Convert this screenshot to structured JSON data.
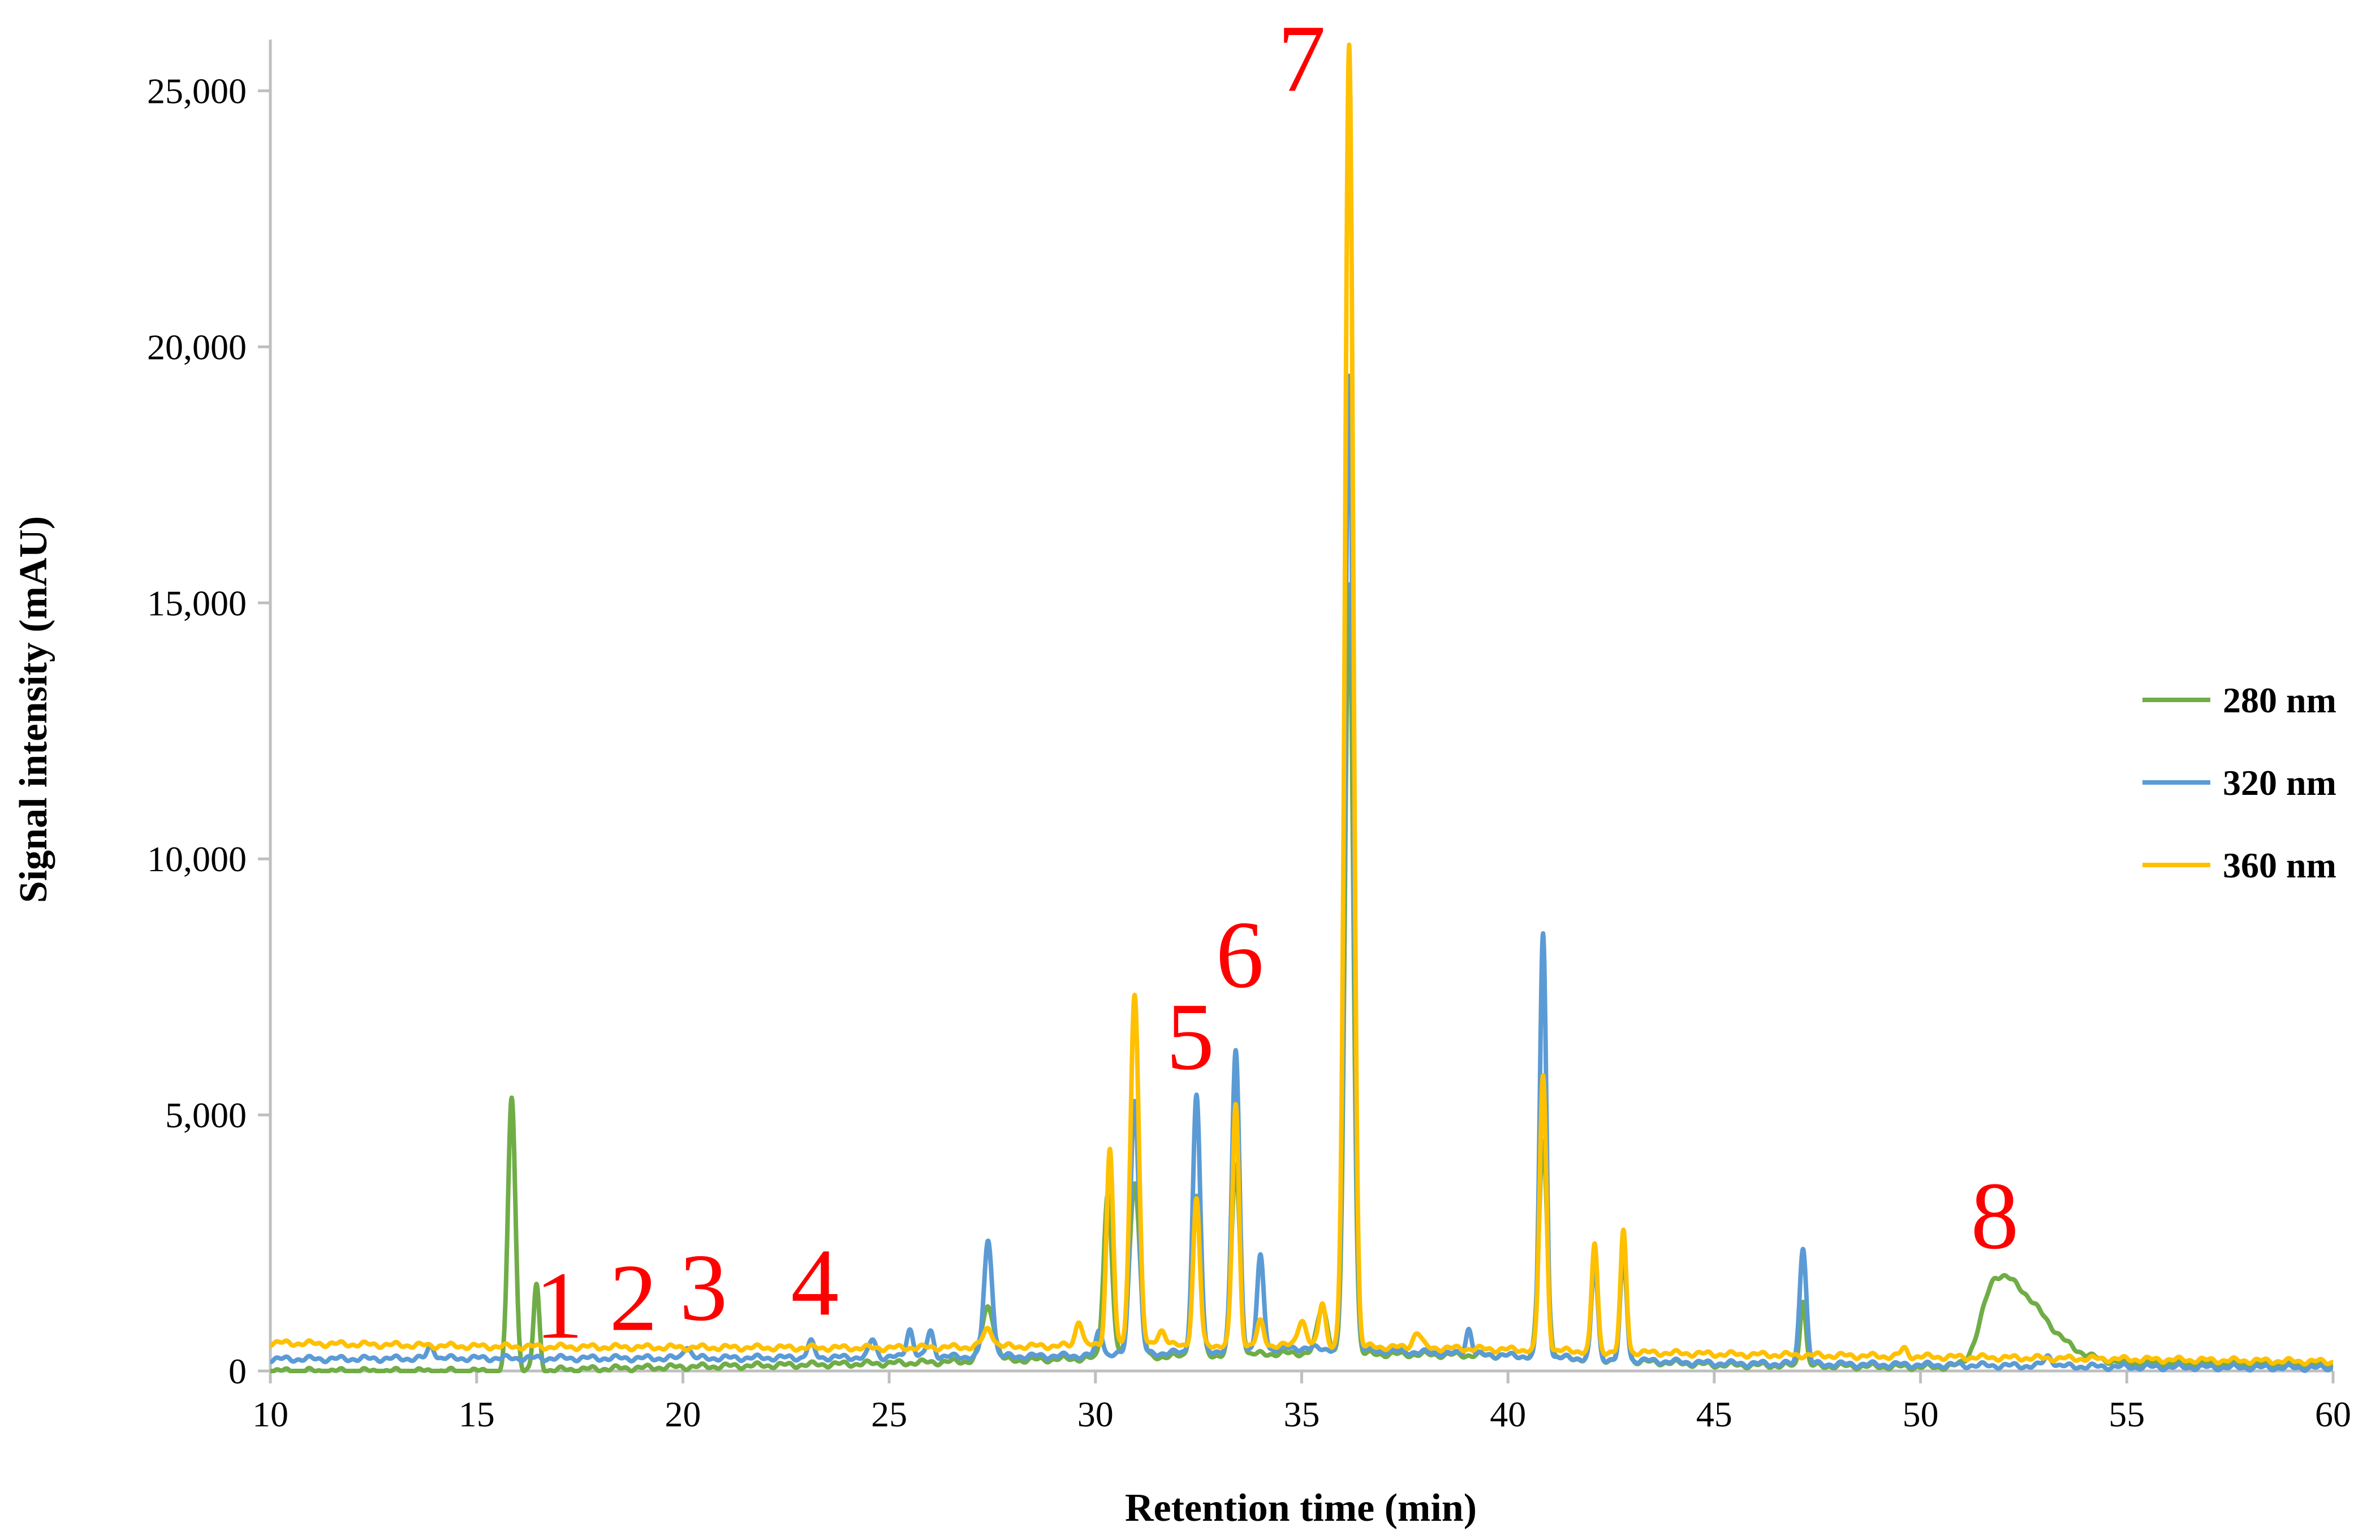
{
  "chart_data": {
    "type": "line",
    "xlabel": "Retention time (min)",
    "ylabel": "Signal intensity (mAU)",
    "xlim": [
      10,
      60
    ],
    "ylim": [
      0,
      26000
    ],
    "x_ticks": [
      10,
      15,
      20,
      25,
      30,
      35,
      40,
      45,
      50,
      55,
      60
    ],
    "x_tick_labels": [
      "10",
      "15",
      "20",
      "25",
      "30",
      "35",
      "40",
      "45",
      "50",
      "55",
      "60"
    ],
    "y_ticks": [
      0,
      5000,
      10000,
      15000,
      20000,
      25000
    ],
    "y_tick_labels": [
      "0",
      "5,000",
      "10,000",
      "15,000",
      "20,000",
      "25,000"
    ],
    "grid": false,
    "legend_position": "right",
    "series": [
      {
        "name": "280 nm",
        "color": "#70ad47",
        "baseline": [
          [
            10,
            0
          ],
          [
            15.7,
            0
          ],
          [
            20,
            80
          ],
          [
            25,
            150
          ],
          [
            30,
            250
          ],
          [
            35,
            350
          ],
          [
            40,
            300
          ],
          [
            45,
            120
          ],
          [
            50,
            80
          ],
          [
            51.3,
            80
          ],
          [
            53,
            300
          ],
          [
            55,
            150
          ],
          [
            60,
            120
          ]
        ],
        "peaks": [
          [
            15.85,
            5350,
            0.09
          ],
          [
            16.45,
            1650,
            0.07
          ],
          [
            27.4,
            1050,
            0.15
          ],
          [
            30.3,
            3200,
            0.1
          ],
          [
            30.95,
            3450,
            0.12
          ],
          [
            32.45,
            3100,
            0.1
          ],
          [
            33.4,
            3700,
            0.1
          ],
          [
            35.5,
            900,
            0.12
          ],
          [
            36.15,
            15000,
            0.1
          ],
          [
            40.85,
            4200,
            0.1
          ],
          [
            42.1,
            1800,
            0.08
          ],
          [
            42.8,
            2000,
            0.08
          ],
          [
            47.15,
            1300,
            0.07
          ],
          [
            51.85,
            1700,
            0.35
          ]
        ]
      },
      {
        "name": "320 nm",
        "color": "#5b9bd5",
        "baseline": [
          [
            10,
            230
          ],
          [
            15,
            250
          ],
          [
            20,
            250
          ],
          [
            25,
            270
          ],
          [
            30,
            300
          ],
          [
            35,
            450
          ],
          [
            40,
            300
          ],
          [
            45,
            150
          ],
          [
            50,
            120
          ],
          [
            55,
            80
          ],
          [
            60,
            60
          ]
        ],
        "peaks": [
          [
            13.9,
            250,
            0.08
          ],
          [
            20.1,
            250,
            0.08
          ],
          [
            23.1,
            300,
            0.08
          ],
          [
            24.6,
            350,
            0.08
          ],
          [
            25.5,
            550,
            0.08
          ],
          [
            26.0,
            500,
            0.08
          ],
          [
            27.4,
            2250,
            0.1
          ],
          [
            30.1,
            500,
            0.08
          ],
          [
            30.95,
            5000,
            0.1
          ],
          [
            32.45,
            5000,
            0.09
          ],
          [
            33.4,
            5850,
            0.09
          ],
          [
            34.0,
            1800,
            0.08
          ],
          [
            36.15,
            19000,
            0.1
          ],
          [
            39.05,
            500,
            0.07
          ],
          [
            40.85,
            8250,
            0.08
          ],
          [
            42.1,
            2100,
            0.07
          ],
          [
            42.8,
            2400,
            0.07
          ],
          [
            47.15,
            2300,
            0.08
          ],
          [
            53.1,
            200,
            0.1
          ]
        ]
      },
      {
        "name": "360 nm",
        "color": "#ffc000",
        "baseline": [
          [
            10,
            550
          ],
          [
            15,
            480
          ],
          [
            20,
            460
          ],
          [
            25,
            450
          ],
          [
            30,
            500
          ],
          [
            35,
            500
          ],
          [
            40,
            420
          ],
          [
            45,
            330
          ],
          [
            50,
            280
          ],
          [
            55,
            230
          ],
          [
            60,
            180
          ]
        ],
        "peaks": [
          [
            27.4,
            350,
            0.12
          ],
          [
            29.6,
            500,
            0.08
          ],
          [
            30.35,
            3850,
            0.08
          ],
          [
            30.95,
            6900,
            0.1
          ],
          [
            31.6,
            300,
            0.1
          ],
          [
            32.45,
            2850,
            0.08
          ],
          [
            33.4,
            4700,
            0.08
          ],
          [
            34.0,
            450,
            0.08
          ],
          [
            35.0,
            500,
            0.1
          ],
          [
            35.5,
            850,
            0.08
          ],
          [
            36.15,
            25400,
            0.1
          ],
          [
            37.8,
            300,
            0.1
          ],
          [
            40.85,
            5350,
            0.08
          ],
          [
            42.1,
            2100,
            0.07
          ],
          [
            42.8,
            2350,
            0.07
          ],
          [
            49.6,
            150,
            0.08
          ]
        ]
      }
    ],
    "annotations": [
      {
        "text": "1",
        "x": 17.0,
        "y": 650
      },
      {
        "text": "2",
        "x": 18.8,
        "y": 800
      },
      {
        "text": "3",
        "x": 20.5,
        "y": 1000
      },
      {
        "text": "4",
        "x": 23.2,
        "y": 1100
      },
      {
        "text": "5",
        "x": 32.3,
        "y": 5900
      },
      {
        "text": "6",
        "x": 33.5,
        "y": 7500
      },
      {
        "text": "7",
        "x": 35.0,
        "y": 25000
      },
      {
        "text": "8",
        "x": 51.8,
        "y": 2400
      }
    ]
  }
}
